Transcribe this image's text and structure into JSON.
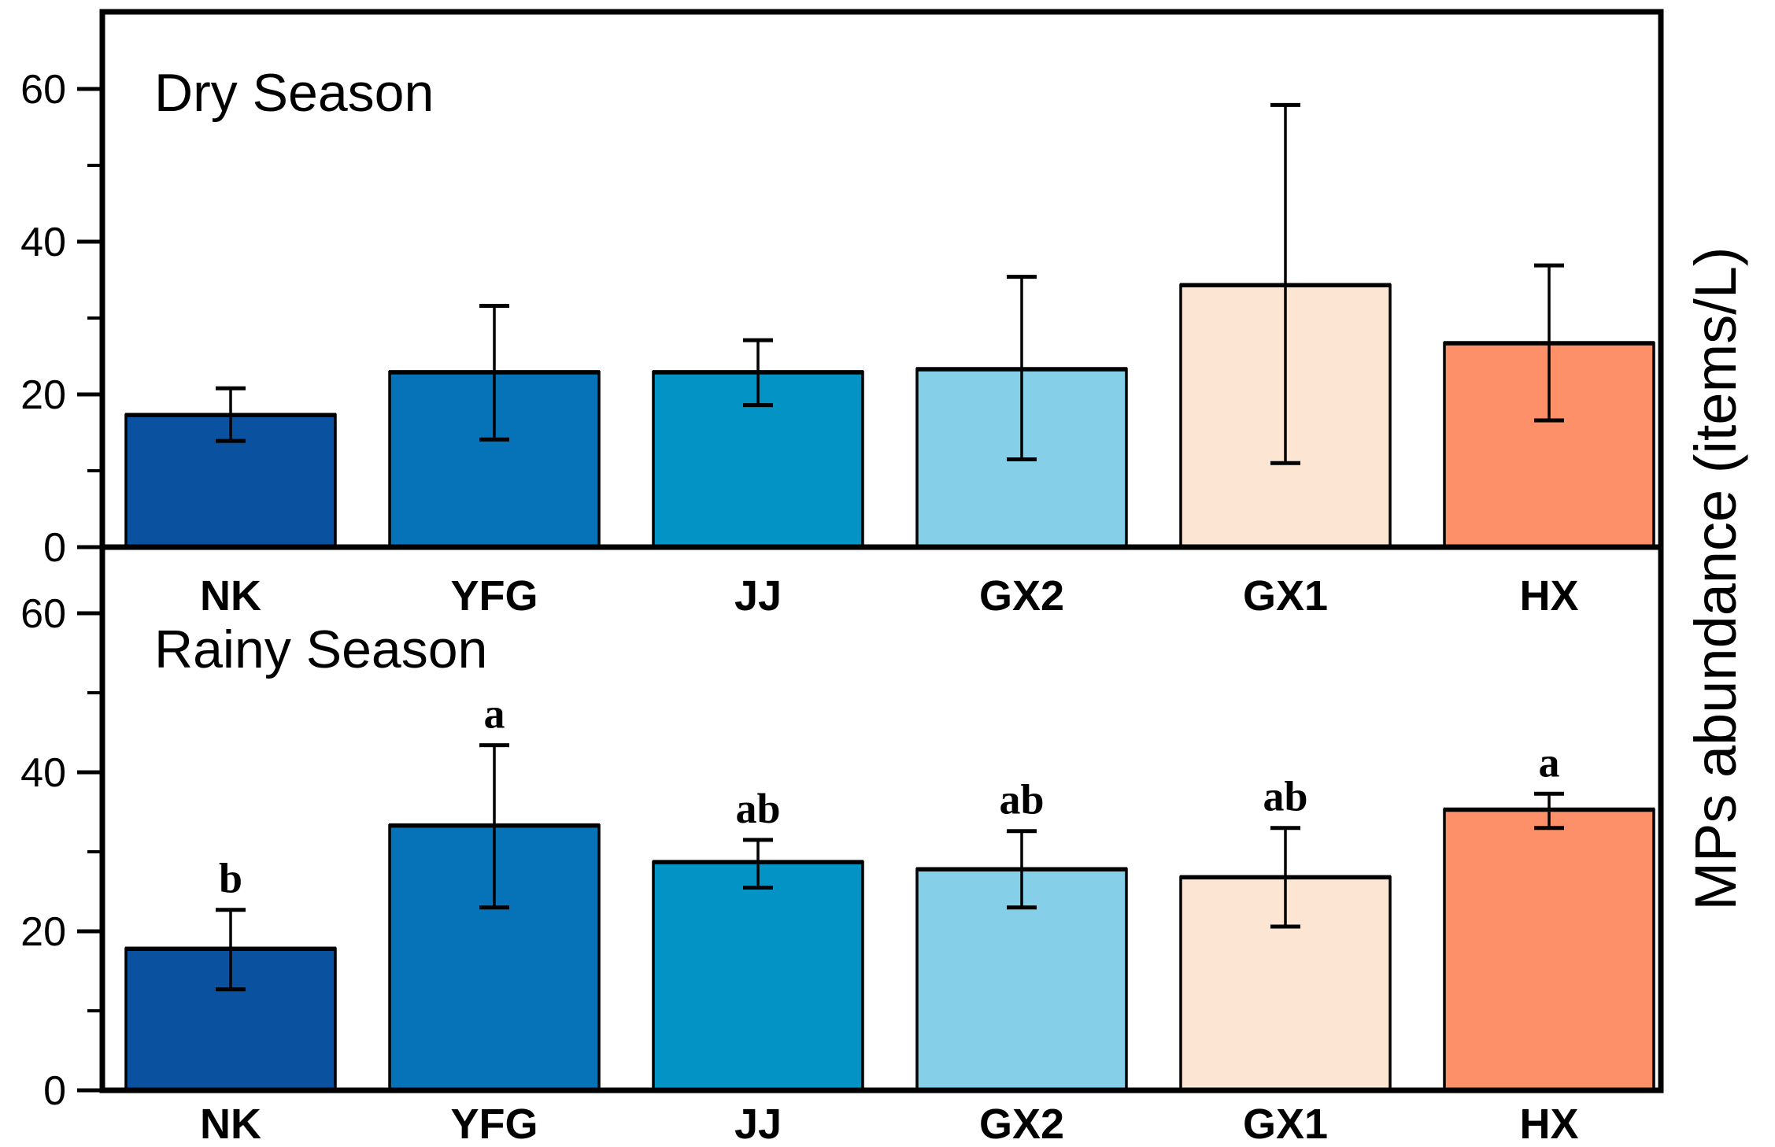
{
  "chart_data": {
    "type": "bar",
    "title": "",
    "ylabel": "MPs abundance (items/L)",
    "xlabel": "",
    "categories": [
      "NK",
      "YFG",
      "JJ",
      "GX2",
      "GX1",
      "HX"
    ],
    "bar_colors": [
      "#0A529F",
      "#0673B8",
      "#0393C4",
      "#85CFE8",
      "#FCE5D2",
      "#FD9068"
    ],
    "bar_edge_color": "#000000",
    "error_bar_color": "#000000",
    "ylim": [
      0,
      70
    ],
    "yticks_major": [
      0,
      20,
      40,
      60
    ],
    "yticks_minor": [
      10,
      30,
      50
    ],
    "grid": false,
    "legend": "none",
    "panels": [
      {
        "title": "Dry Season",
        "series_name": "Dry Season MPs abundance (items/L)",
        "values": [
          17.3,
          22.9,
          22.9,
          23.3,
          34.3,
          26.7
        ],
        "err_upper": [
          20.8,
          31.6,
          27.1,
          35.4,
          57.9,
          36.9
        ],
        "err_lower": [
          13.9,
          14.1,
          18.6,
          11.5,
          11.0,
          16.6
        ],
        "sig_letters": [
          "",
          "",
          "",
          "",
          "",
          ""
        ]
      },
      {
        "title": "Rainy Season",
        "series_name": "Rainy Season MPs abundance (items/L)",
        "values": [
          17.8,
          33.3,
          28.7,
          27.8,
          26.8,
          35.3
        ],
        "err_upper": [
          22.7,
          43.4,
          31.5,
          32.6,
          33.0,
          37.3
        ],
        "err_lower": [
          12.7,
          23.0,
          25.5,
          23.0,
          20.6,
          33.0
        ],
        "sig_letters": [
          "b",
          "a",
          "ab",
          "ab",
          "ab",
          "a"
        ]
      }
    ]
  }
}
